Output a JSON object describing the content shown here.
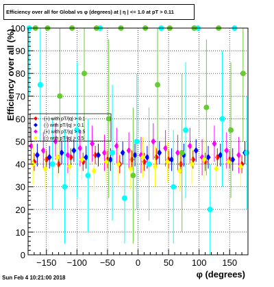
{
  "chart_data": {
    "type": "scatter",
    "title": "Efficiency over all for Global vs φ (degrees) at | η | <= 1.0 at pT > 0.11",
    "xlabel": "φ (degrees)",
    "ylabel": "Efficiency over all (%)",
    "xlim": [
      -180,
      180
    ],
    "ylim": [
      0,
      100
    ],
    "x_ticks": [
      -150,
      -100,
      -50,
      0,
      50,
      100,
      150
    ],
    "y_ticks": [
      0,
      10,
      20,
      30,
      40,
      50,
      60,
      70,
      80,
      90,
      100
    ],
    "grid": true,
    "legend_position": "upper-left",
    "legend_entries": [
      "(+) with pT/|q| > 0.1",
      "(-) with pT/|q| > 0.1",
      "(+) with pT/|q| > 0.5",
      "(-) with pT/|q| > 0.5"
    ],
    "series": [
      {
        "color": "#ff0000",
        "marker": "diamond",
        "x": [
          -170,
          -150,
          -130,
          -110,
          -90,
          -70,
          -50,
          -30,
          -10,
          10,
          30,
          50,
          70,
          90,
          110,
          130,
          150,
          170
        ],
        "y": [
          41,
          42,
          40,
          43,
          41,
          44,
          42,
          40,
          42,
          41,
          43,
          42,
          40,
          42,
          41,
          43,
          42,
          40
        ],
        "err": [
          4,
          4,
          4,
          4,
          4,
          4,
          4,
          4,
          4,
          4,
          4,
          4,
          4,
          4,
          4,
          4,
          4,
          4
        ]
      },
      {
        "color": "#0000ff",
        "marker": "diamond",
        "x": [
          -165,
          -145,
          -125,
          -105,
          -85,
          -65,
          -45,
          -25,
          -5,
          15,
          35,
          55,
          75,
          95,
          115,
          135,
          155,
          175
        ],
        "y": [
          44,
          43,
          45,
          46,
          43,
          44,
          42,
          45,
          44,
          43,
          45,
          42,
          44,
          46,
          43,
          44,
          42,
          45
        ],
        "err": [
          5,
          5,
          5,
          5,
          5,
          5,
          5,
          5,
          5,
          5,
          5,
          5,
          5,
          5,
          5,
          5,
          5,
          5
        ]
      },
      {
        "color": "#ff00ff",
        "marker": "diamond",
        "x": [
          -175,
          -155,
          -135,
          -115,
          -95,
          -75,
          -55,
          -35,
          -15,
          5,
          25,
          45,
          65,
          85,
          105,
          125,
          145,
          165
        ],
        "y": [
          48,
          46,
          50,
          44,
          47,
          49,
          45,
          48,
          46,
          44,
          50,
          47,
          45,
          48,
          43,
          49,
          46,
          44
        ],
        "err": [
          8,
          8,
          8,
          8,
          8,
          8,
          8,
          8,
          8,
          8,
          8,
          8,
          8,
          8,
          8,
          8,
          8,
          8
        ]
      },
      {
        "color": "#ffff00",
        "marker": "diamond",
        "x": [
          -172,
          -152,
          -132,
          -112,
          -92,
          -72,
          -52,
          -32,
          -12,
          8,
          28,
          48,
          68,
          88,
          108,
          128,
          148,
          168
        ],
        "y": [
          40,
          38,
          43,
          39,
          42,
          37,
          41,
          40,
          38,
          43,
          39,
          41,
          37,
          40,
          42,
          38,
          41,
          39
        ],
        "err": [
          9,
          9,
          9,
          9,
          9,
          9,
          9,
          9,
          9,
          9,
          9,
          9,
          9,
          9,
          9,
          9,
          9,
          9
        ]
      },
      {
        "color": "#00ffff",
        "marker": "circle",
        "x": [
          -178,
          -160,
          -140,
          -120,
          -100,
          -82,
          -62,
          -42,
          -22,
          -2,
          18,
          38,
          58,
          78,
          98,
          118,
          138,
          158,
          178
        ],
        "y": [
          100,
          75,
          40,
          30,
          55,
          35,
          100,
          45,
          25,
          50,
          40,
          100,
          30,
          55,
          100,
          20,
          60,
          100,
          45
        ],
        "err": [
          30,
          25,
          20,
          25,
          30,
          25,
          0,
          30,
          20,
          30,
          25,
          0,
          25,
          30,
          0,
          20,
          30,
          0,
          25
        ]
      },
      {
        "color": "#66cc33",
        "marker": "circle",
        "x": [
          -168,
          -148,
          -128,
          -108,
          -88,
          -68,
          -48,
          -28,
          -8,
          12,
          32,
          52,
          72,
          92,
          112,
          132,
          152,
          172
        ],
        "y": [
          100,
          100,
          70,
          100,
          80,
          100,
          60,
          100,
          35,
          100,
          75,
          100,
          45,
          100,
          65,
          100,
          55,
          80
        ],
        "err": [
          0,
          0,
          30,
          0,
          30,
          0,
          35,
          0,
          30,
          0,
          30,
          0,
          35,
          0,
          30,
          0,
          30,
          30
        ]
      }
    ]
  },
  "footer": {
    "timestamp": "Sun Feb  4 10:21:00 2018"
  }
}
